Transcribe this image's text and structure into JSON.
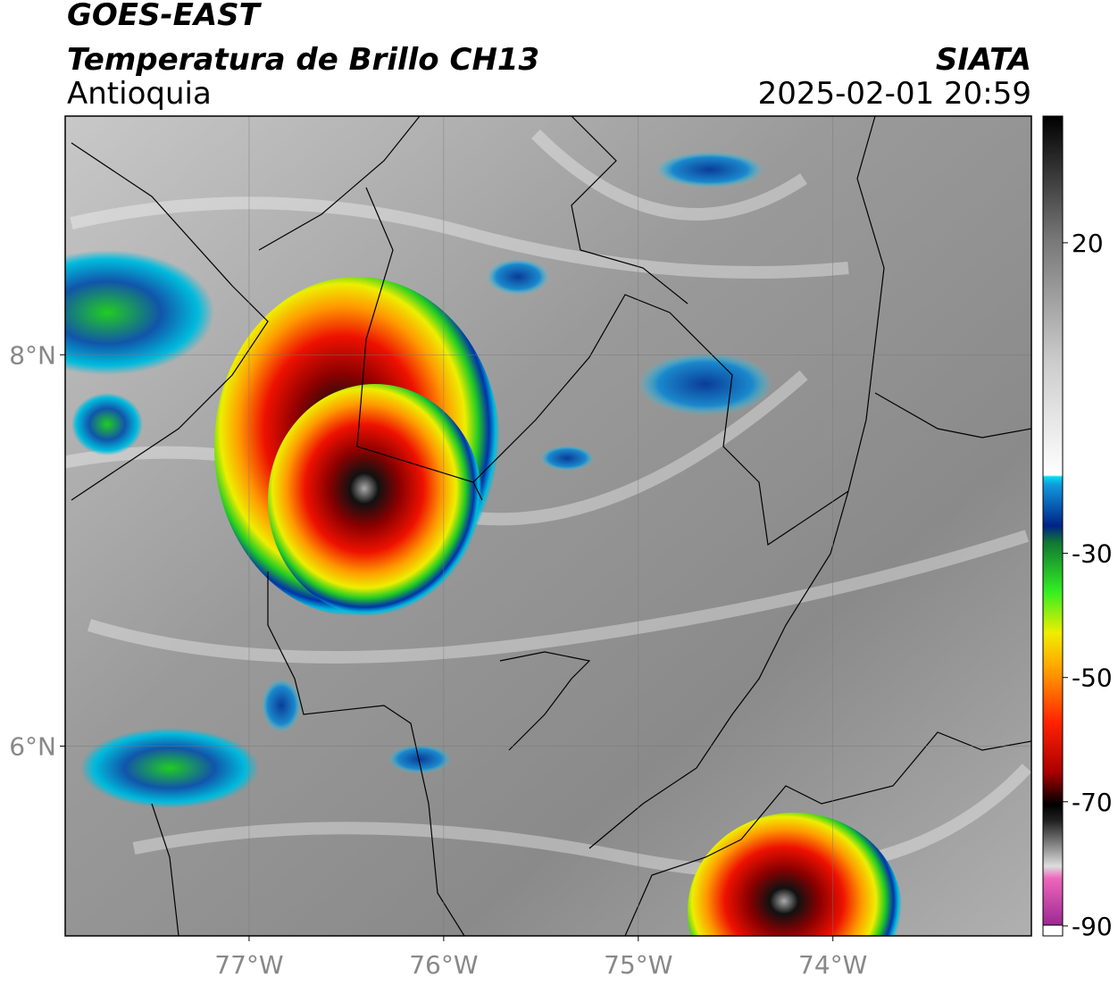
{
  "header": {
    "title": "GOES-EAST",
    "subtitle": "Temperatura de Brillo CH13",
    "region": "Antioquia",
    "source": "SIATA",
    "datetime": "2025-02-01 20:59"
  },
  "map": {
    "xlim": [
      -77.945,
      -72.98
    ],
    "ylim": [
      5.03,
      9.22
    ],
    "xticks": [
      {
        "value": -77,
        "label": "77°W"
      },
      {
        "value": -76,
        "label": "76°W"
      },
      {
        "value": -75,
        "label": "75°W"
      },
      {
        "value": -74,
        "label": "74°W"
      }
    ],
    "yticks": [
      {
        "value": 6,
        "label": "6°N"
      },
      {
        "value": 8,
        "label": "8°N"
      }
    ],
    "grid": true
  },
  "colorbar": {
    "lim": [
      -91.6,
      40.4
    ],
    "ticks": [
      20,
      -30,
      -50,
      -70,
      -90
    ]
  }
}
